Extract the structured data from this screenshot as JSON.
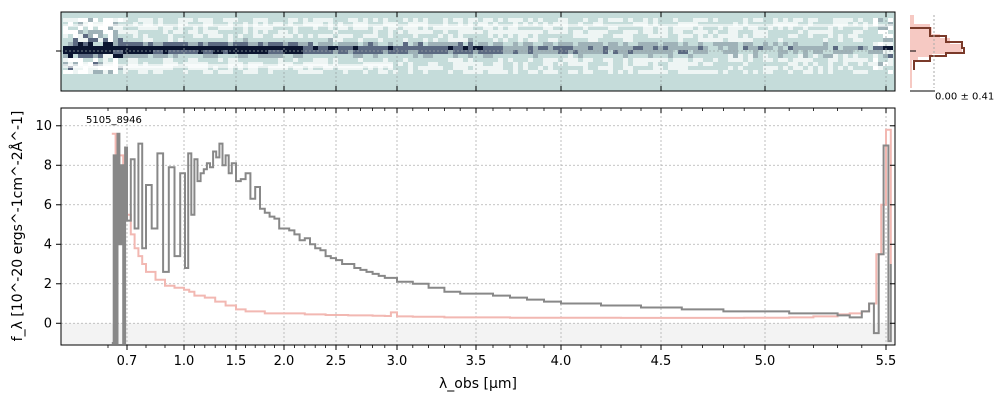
{
  "chart_data": [
    {
      "type": "heatmap",
      "panel": "2d-spectrum",
      "colormap": [
        "#ffffff",
        "#c5dcda",
        "#0b1530"
      ],
      "background_color": "#c5dcda"
    },
    {
      "type": "line",
      "panel": "profile",
      "annotation": "0.00 ± 0.41",
      "line_color": "#7a3a2a",
      "fill_color": "#f6c9c3"
    },
    {
      "type": "line",
      "panel": "1d-spectrum",
      "annotation": "5105_8946",
      "xlabel": "λ_obs [μm]",
      "ylabel": "f_λ [10^-20 ergs^-1cm^-2Å^-1]",
      "xticks": [
        {
          "label": "0.7",
          "value": 0.7
        },
        {
          "label": "1.0",
          "value": 1.0
        },
        {
          "label": "1.5",
          "value": 1.5
        },
        {
          "label": "2.0",
          "value": 2.0
        },
        {
          "label": "2.5",
          "value": 2.5
        },
        {
          "label": "3.0",
          "value": 3.0
        },
        {
          "label": "3.5",
          "value": 3.5
        },
        {
          "label": "4.0",
          "value": 4.0
        },
        {
          "label": "4.5",
          "value": 4.5
        },
        {
          "label": "5.0",
          "value": 5.0
        },
        {
          "label": "5.5",
          "value": 5.5
        }
      ],
      "yticks": [
        0,
        2,
        4,
        6,
        8,
        10
      ],
      "ylim": [
        -1.1,
        10.9
      ],
      "grid": true,
      "series": [
        {
          "role": "flux",
          "color": "#888888",
          "x": [
            0.62,
            0.63,
            0.64,
            0.65,
            0.66,
            0.67,
            0.68,
            0.69,
            0.7,
            0.72,
            0.74,
            0.76,
            0.78,
            0.8,
            0.83,
            0.86,
            0.89,
            0.92,
            0.95,
            0.98,
            1.01,
            1.04,
            1.07,
            1.1,
            1.13,
            1.16,
            1.19,
            1.22,
            1.25,
            1.28,
            1.31,
            1.34,
            1.37,
            1.4,
            1.43,
            1.46,
            1.5,
            1.55,
            1.6,
            1.65,
            1.7,
            1.75,
            1.8,
            1.85,
            1.9,
            1.95,
            2.0,
            2.05,
            2.1,
            2.15,
            2.2,
            2.25,
            2.3,
            2.35,
            2.4,
            2.45,
            2.5,
            2.55,
            2.6,
            2.65,
            2.7,
            2.75,
            2.8,
            2.85,
            2.9,
            2.95,
            3.0,
            3.1,
            3.2,
            3.3,
            3.4,
            3.5,
            3.6,
            3.7,
            3.8,
            3.9,
            4.0,
            4.1,
            4.2,
            4.3,
            4.4,
            4.5,
            4.6,
            4.7,
            4.8,
            4.9,
            5.0,
            5.1,
            5.2,
            5.3,
            5.35,
            5.4,
            5.43,
            5.45,
            5.47,
            5.49,
            5.51,
            5.52
          ],
          "y": [
            -1.0,
            8.5,
            -1.0,
            9.6,
            4.0,
            8.0,
            -1.0,
            8.9,
            5.2,
            8.3,
            4.8,
            9.1,
            3.8,
            7.0,
            4.8,
            8.6,
            2.6,
            7.9,
            3.4,
            7.6,
            2.8,
            8.6,
            5.5,
            8.3,
            7.2,
            7.6,
            7.8,
            8.1,
            7.9,
            8.7,
            8.4,
            9.1,
            8.0,
            8.5,
            7.6,
            8.1,
            7.2,
            7.3,
            7.6,
            6.3,
            6.9,
            5.8,
            5.6,
            5.4,
            5.3,
            4.8,
            4.8,
            4.7,
            4.5,
            4.2,
            4.3,
            4.0,
            3.8,
            3.7,
            3.4,
            3.3,
            3.2,
            3.0,
            3.0,
            2.8,
            2.7,
            2.6,
            2.5,
            2.4,
            2.3,
            2.3,
            2.1,
            2.0,
            1.8,
            1.6,
            1.5,
            1.5,
            1.4,
            1.3,
            1.2,
            1.1,
            1.0,
            1.0,
            0.9,
            0.9,
            0.8,
            0.8,
            0.7,
            0.7,
            0.6,
            0.6,
            0.6,
            0.5,
            0.5,
            0.4,
            0.3,
            0.6,
            1.0,
            -0.5,
            3.5,
            9.0,
            -0.9,
            3.0
          ]
        },
        {
          "role": "model",
          "color": "#f2b8b2",
          "x": [
            0.62,
            0.64,
            0.66,
            0.68,
            0.7,
            0.72,
            0.74,
            0.76,
            0.78,
            0.8,
            0.85,
            0.9,
            0.95,
            1.0,
            1.05,
            1.1,
            1.2,
            1.3,
            1.4,
            1.5,
            1.6,
            1.7,
            1.8,
            2.0,
            2.2,
            2.4,
            2.6,
            2.8,
            2.9,
            2.95,
            3.0,
            3.1,
            3.3,
            3.5,
            3.7,
            4.0,
            4.3,
            4.6,
            4.9,
            5.1,
            5.2,
            5.3,
            5.35,
            5.4,
            5.43,
            5.46,
            5.48,
            5.5,
            5.52
          ],
          "y": [
            9.6,
            7.5,
            8.5,
            6.6,
            5.5,
            4.5,
            3.8,
            3.4,
            3.0,
            2.6,
            2.2,
            1.9,
            1.8,
            1.7,
            1.6,
            1.4,
            1.3,
            1.1,
            0.9,
            0.7,
            0.6,
            0.6,
            0.5,
            0.5,
            0.45,
            0.42,
            0.4,
            0.38,
            0.37,
            0.55,
            0.35,
            0.33,
            0.3,
            0.3,
            0.28,
            0.28,
            0.27,
            0.27,
            0.28,
            0.3,
            0.35,
            0.45,
            0.5,
            0.6,
            1.0,
            3.5,
            6.0,
            9.8,
            3.0
          ]
        }
      ]
    }
  ]
}
